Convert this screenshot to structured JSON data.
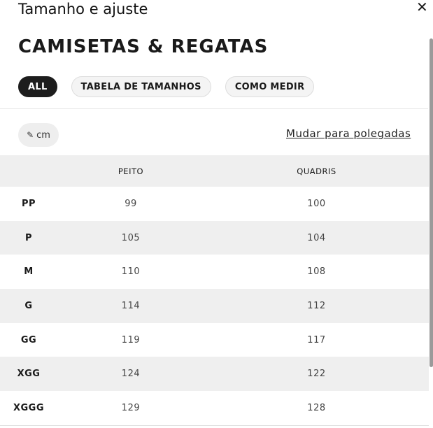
{
  "modal": {
    "title": "Tamanho e ajuste",
    "close_icon": "close-icon"
  },
  "heading": "CAMISETAS & REGATAS",
  "tabs": [
    {
      "label": "ALL",
      "active": true
    },
    {
      "label": "TABELA DE TAMANHOS",
      "active": false
    },
    {
      "label": "COMO MEDIR",
      "active": false
    }
  ],
  "unit": {
    "icon": "ruler-icon",
    "label": "cm"
  },
  "switch_link": "Mudar para polegadas",
  "table": {
    "headers": [
      "",
      "PEITO",
      "QUADRIS"
    ],
    "rows": [
      [
        "PP",
        "99",
        "100"
      ],
      [
        "P",
        "105",
        "104"
      ],
      [
        "M",
        "110",
        "108"
      ],
      [
        "G",
        "114",
        "112"
      ],
      [
        "GG",
        "119",
        "117"
      ],
      [
        "XGG",
        "124",
        "122"
      ],
      [
        "XGGG",
        "129",
        "128"
      ]
    ]
  }
}
